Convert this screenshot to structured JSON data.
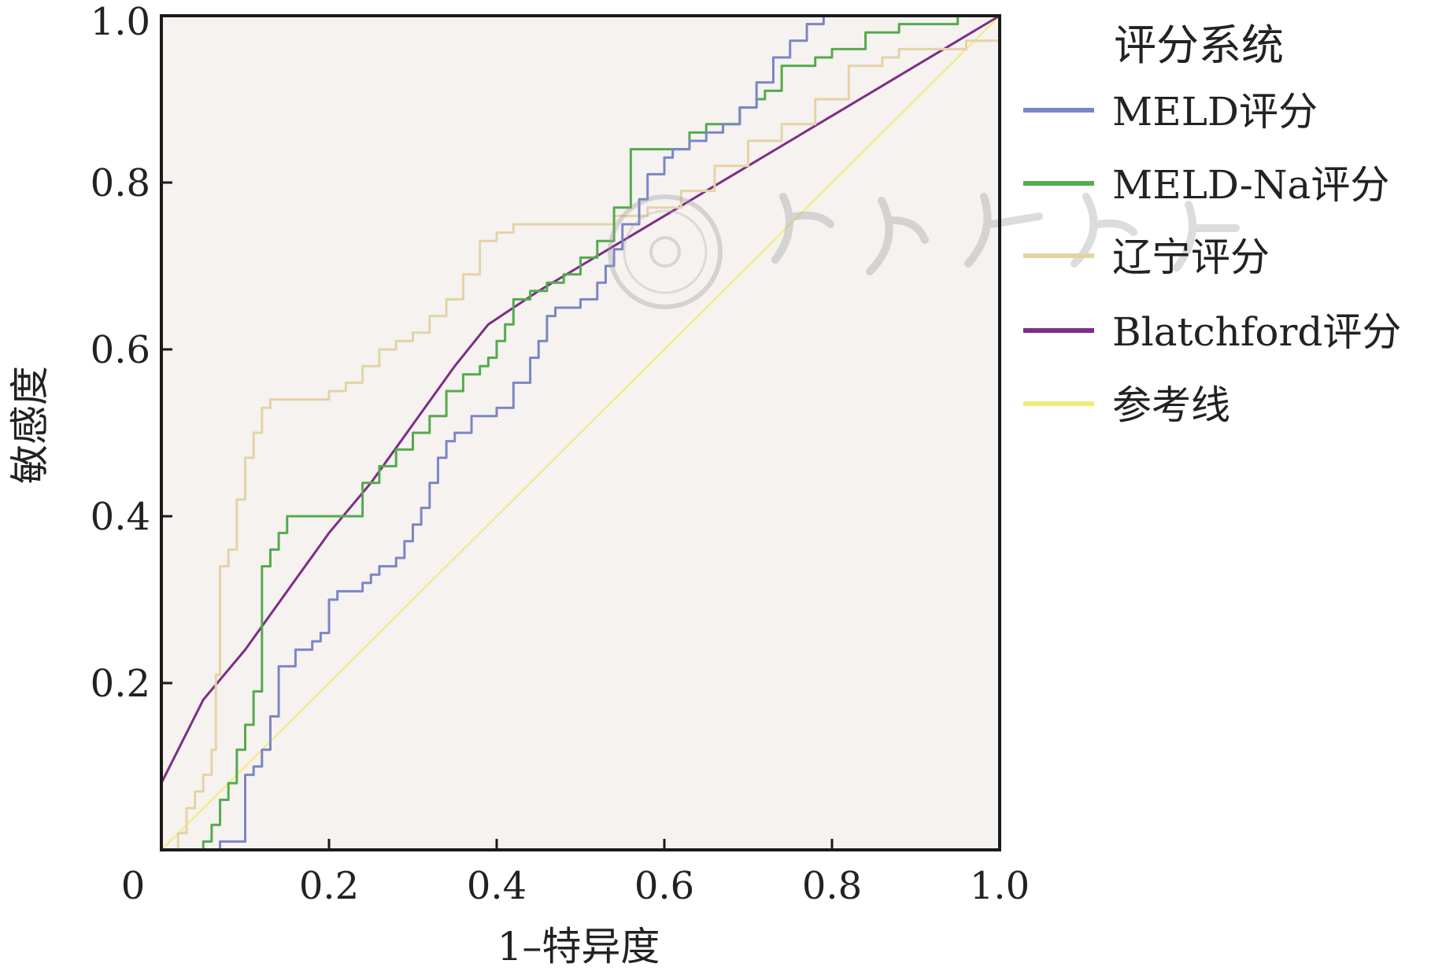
{
  "chart_data": {
    "type": "line",
    "xlabel": "1–特异度",
    "ylabel": "敏感度",
    "xlim": [
      0,
      1
    ],
    "ylim": [
      0,
      1
    ],
    "x_ticks": [
      "0",
      "0.2",
      "0.4",
      "0.6",
      "0.8",
      "1.0"
    ],
    "y_ticks": [
      "0.2",
      "0.4",
      "0.6",
      "0.8",
      "1.0"
    ],
    "x_tick_values": [
      0,
      0.2,
      0.4,
      0.6,
      0.8,
      1.0
    ],
    "y_tick_values": [
      0.2,
      0.4,
      0.6,
      0.8,
      1.0
    ],
    "legend": {
      "title": "评分系统",
      "placement": "right-outside"
    },
    "plot_background": "#f5f2f0",
    "series": [
      {
        "name": "MELD评分",
        "color": "#7b86c4",
        "step": true,
        "x": [
          0.07,
          0.1,
          0.1,
          0.11,
          0.12,
          0.13,
          0.14,
          0.15,
          0.16,
          0.18,
          0.19,
          0.2,
          0.21,
          0.23,
          0.24,
          0.25,
          0.26,
          0.27,
          0.28,
          0.29,
          0.3,
          0.31,
          0.32,
          0.33,
          0.34,
          0.35,
          0.37,
          0.4,
          0.42,
          0.44,
          0.45,
          0.46,
          0.47,
          0.5,
          0.52,
          0.53,
          0.54,
          0.55,
          0.57,
          0.58,
          0.6,
          0.61,
          0.63,
          0.65,
          0.67,
          0.69,
          0.71,
          0.73,
          0.75,
          0.77,
          0.79,
          0.81,
          0.83,
          0.85,
          0.87,
          0.9,
          0.92,
          0.94,
          1.0
        ],
        "y": [
          0.01,
          0.06,
          0.09,
          0.1,
          0.12,
          0.16,
          0.22,
          0.22,
          0.24,
          0.25,
          0.26,
          0.3,
          0.31,
          0.31,
          0.32,
          0.33,
          0.34,
          0.34,
          0.35,
          0.37,
          0.39,
          0.41,
          0.44,
          0.47,
          0.49,
          0.5,
          0.52,
          0.53,
          0.56,
          0.59,
          0.61,
          0.64,
          0.65,
          0.66,
          0.68,
          0.7,
          0.72,
          0.75,
          0.78,
          0.81,
          0.83,
          0.84,
          0.85,
          0.86,
          0.87,
          0.89,
          0.92,
          0.95,
          0.97,
          0.99,
          1.0,
          1.0,
          1.0,
          1.0,
          1.0,
          1.0,
          1.0,
          1.0,
          1.0
        ]
      },
      {
        "name": "MELD-Na评分",
        "color": "#55aa4e",
        "step": true,
        "x": [
          0.05,
          0.06,
          0.07,
          0.08,
          0.09,
          0.1,
          0.11,
          0.12,
          0.13,
          0.14,
          0.15,
          0.2,
          0.24,
          0.26,
          0.28,
          0.3,
          0.32,
          0.34,
          0.36,
          0.38,
          0.39,
          0.4,
          0.41,
          0.42,
          0.44,
          0.46,
          0.48,
          0.5,
          0.52,
          0.54,
          0.56,
          0.58,
          0.63,
          0.65,
          0.69,
          0.71,
          0.72,
          0.74,
          0.76,
          0.78,
          0.8,
          0.84,
          0.86,
          0.88,
          0.91,
          0.95,
          0.97,
          1.0
        ],
        "y": [
          0.01,
          0.03,
          0.06,
          0.08,
          0.12,
          0.15,
          0.19,
          0.34,
          0.36,
          0.38,
          0.4,
          0.4,
          0.44,
          0.46,
          0.48,
          0.5,
          0.52,
          0.55,
          0.57,
          0.58,
          0.59,
          0.61,
          0.63,
          0.66,
          0.67,
          0.68,
          0.69,
          0.71,
          0.73,
          0.77,
          0.84,
          0.84,
          0.86,
          0.87,
          0.89,
          0.9,
          0.91,
          0.94,
          0.94,
          0.95,
          0.96,
          0.98,
          0.98,
          0.99,
          0.99,
          1.0,
          1.0,
          1.0
        ]
      },
      {
        "name": "辽宁评分",
        "color": "#e5d3a7",
        "step": true,
        "x": [
          0.02,
          0.03,
          0.04,
          0.05,
          0.06,
          0.065,
          0.07,
          0.08,
          0.09,
          0.1,
          0.11,
          0.12,
          0.13,
          0.16,
          0.2,
          0.22,
          0.24,
          0.26,
          0.28,
          0.3,
          0.32,
          0.34,
          0.36,
          0.38,
          0.4,
          0.42,
          0.46,
          0.5,
          0.54,
          0.58,
          0.62,
          0.66,
          0.7,
          0.74,
          0.78,
          0.82,
          0.86,
          0.88,
          0.92,
          0.96,
          1.0
        ],
        "y": [
          0.02,
          0.05,
          0.07,
          0.09,
          0.12,
          0.21,
          0.34,
          0.36,
          0.42,
          0.47,
          0.5,
          0.53,
          0.54,
          0.54,
          0.55,
          0.56,
          0.58,
          0.6,
          0.61,
          0.62,
          0.64,
          0.66,
          0.69,
          0.73,
          0.74,
          0.75,
          0.75,
          0.75,
          0.76,
          0.77,
          0.79,
          0.82,
          0.85,
          0.87,
          0.9,
          0.94,
          0.95,
          0.96,
          0.96,
          0.97,
          1.0
        ]
      },
      {
        "name": "Blatchford评分",
        "color": "#7d2e86",
        "step": false,
        "x": [
          0,
          0.05,
          0.1,
          0.15,
          0.2,
          0.25,
          0.3,
          0.35,
          0.39,
          0.45,
          0.5,
          0.55,
          0.6,
          0.65,
          0.7,
          0.75,
          0.8,
          0.85,
          0.9,
          0.95,
          1.0
        ],
        "y": [
          0.08,
          0.18,
          0.24,
          0.31,
          0.38,
          0.44,
          0.51,
          0.58,
          0.63,
          0.67,
          0.7,
          0.73,
          0.76,
          0.79,
          0.82,
          0.85,
          0.88,
          0.91,
          0.94,
          0.97,
          1.0
        ]
      },
      {
        "name": "参考线",
        "color": "#f4ea77",
        "step": false,
        "x": [
          0,
          1
        ],
        "y": [
          0,
          1
        ]
      }
    ]
  }
}
